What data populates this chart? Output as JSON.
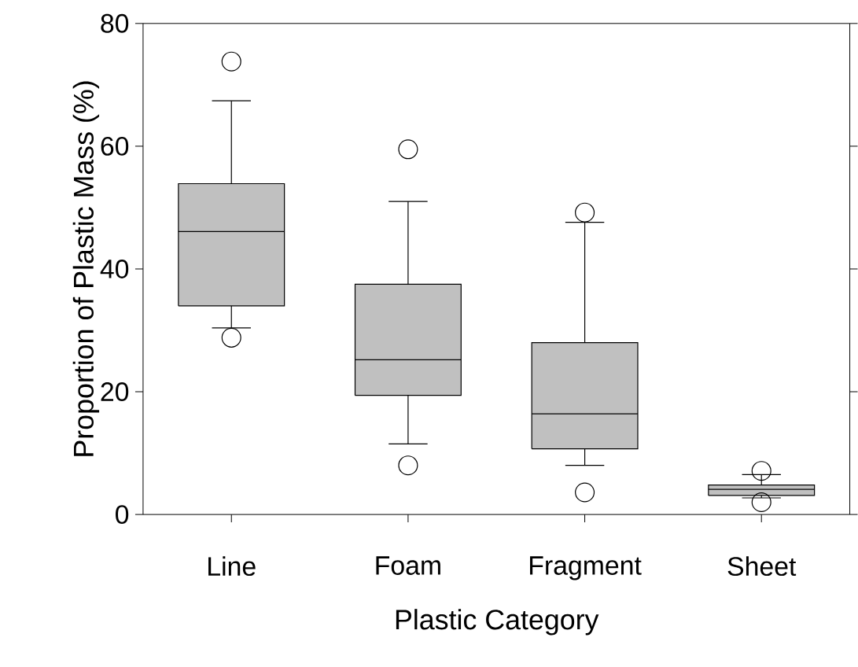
{
  "chart_data": {
    "type": "box",
    "categories": [
      "Line",
      "Foam",
      "Fragment",
      "Sheet"
    ],
    "boxes": [
      {
        "low": 30.4,
        "q1": 34.0,
        "median": 46.1,
        "q3": 53.9,
        "high": 67.4,
        "outliers": [
          73.8,
          28.8
        ]
      },
      {
        "low": 11.5,
        "q1": 19.4,
        "median": 25.2,
        "q3": 37.5,
        "high": 51.0,
        "outliers": [
          59.5,
          8.0
        ]
      },
      {
        "low": 8.0,
        "q1": 10.7,
        "median": 16.4,
        "q3": 28.0,
        "high": 47.6,
        "outliers": [
          49.2,
          3.6
        ]
      },
      {
        "low": 2.7,
        "q1": 3.1,
        "median": 4.1,
        "q3": 4.8,
        "high": 6.5,
        "outliers": [
          7.1,
          2.0
        ]
      }
    ],
    "color": "#c0c0c0",
    "xlabel": "Plastic Category",
    "ylabel": "Proportion of Plastic Mass (%)",
    "ylim": [
      0,
      80
    ],
    "yticks": [
      0,
      20,
      40,
      60,
      80
    ],
    "marker": "circle"
  }
}
